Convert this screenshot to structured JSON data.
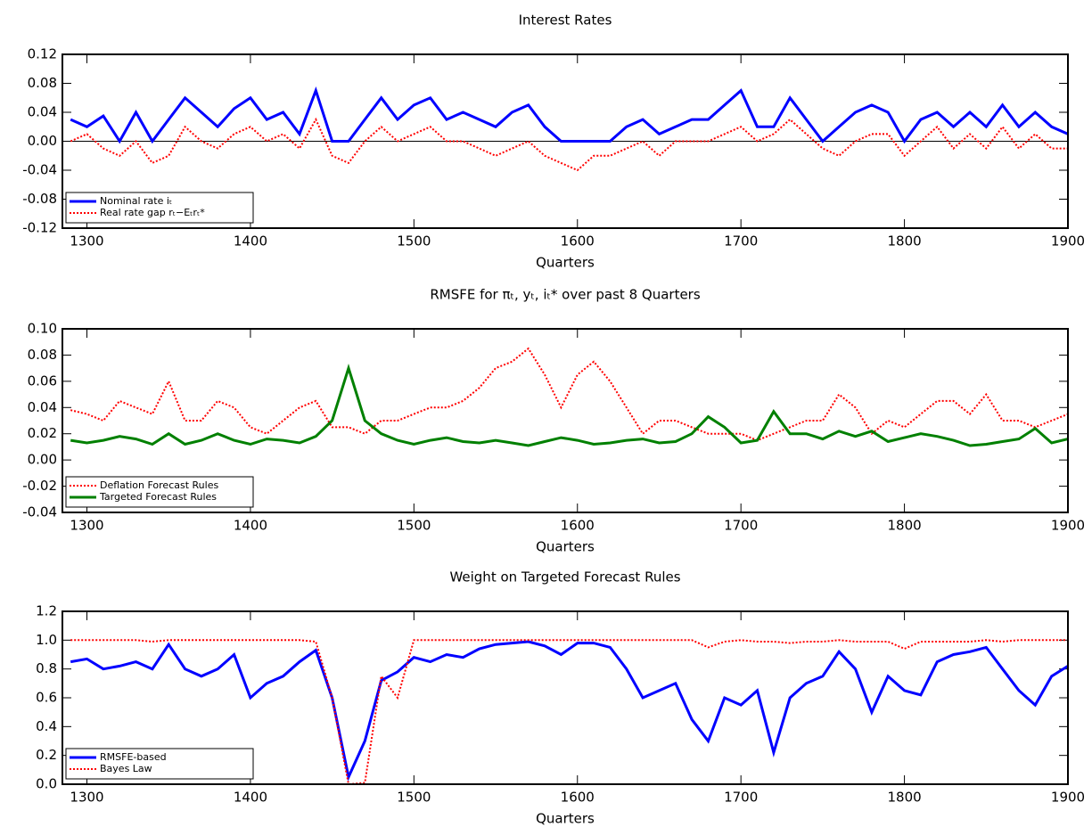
{
  "chart_data": [
    {
      "type": "line",
      "title": "Interest Rates",
      "xlabel": "Quarters",
      "x": [
        1290,
        1300,
        1310,
        1320,
        1330,
        1340,
        1350,
        1360,
        1370,
        1380,
        1390,
        1400,
        1410,
        1420,
        1430,
        1440,
        1450,
        1460,
        1470,
        1480,
        1490,
        1500,
        1510,
        1520,
        1530,
        1540,
        1550,
        1560,
        1570,
        1580,
        1590,
        1600,
        1610,
        1620,
        1630,
        1640,
        1650,
        1660,
        1670,
        1680,
        1690,
        1700,
        1710,
        1720,
        1730,
        1740,
        1750,
        1760,
        1770,
        1780,
        1790,
        1800,
        1810,
        1820,
        1830,
        1840,
        1850,
        1860,
        1870,
        1880,
        1890,
        1900
      ],
      "series": [
        {
          "name": "Nominal rate iₜ",
          "color": "#0000ff",
          "linestyle": "solid",
          "values": [
            0.03,
            0.02,
            0.035,
            0.0,
            0.04,
            0.0,
            0.03,
            0.06,
            0.04,
            0.02,
            0.045,
            0.06,
            0.03,
            0.04,
            0.01,
            0.07,
            0.0,
            0.0,
            0.03,
            0.06,
            0.03,
            0.05,
            0.06,
            0.03,
            0.04,
            0.03,
            0.02,
            0.04,
            0.05,
            0.02,
            0.0,
            0.0,
            0.0,
            0.0,
            0.02,
            0.03,
            0.01,
            0.02,
            0.03,
            0.03,
            0.05,
            0.07,
            0.02,
            0.02,
            0.06,
            0.03,
            0.0,
            0.02,
            0.04,
            0.05,
            0.04,
            0.0,
            0.03,
            0.04,
            0.02,
            0.04,
            0.02,
            0.05,
            0.02,
            0.04,
            0.02,
            0.01
          ]
        },
        {
          "name": "Real rate gap rₜ−Eₜrₜ*",
          "color": "#ff0000",
          "linestyle": "dotted",
          "values": [
            0.0,
            0.01,
            -0.01,
            -0.02,
            0.0,
            -0.03,
            -0.02,
            0.02,
            0.0,
            -0.01,
            0.01,
            0.02,
            0.0,
            0.01,
            -0.01,
            0.03,
            -0.02,
            -0.03,
            0.0,
            0.02,
            0.0,
            0.01,
            0.02,
            0.0,
            0.0,
            -0.01,
            -0.02,
            -0.01,
            0.0,
            -0.02,
            -0.03,
            -0.04,
            -0.02,
            -0.02,
            -0.01,
            0.0,
            -0.02,
            0.0,
            0.0,
            0.0,
            0.01,
            0.02,
            0.0,
            0.01,
            0.03,
            0.01,
            -0.01,
            -0.02,
            0.0,
            0.01,
            0.01,
            -0.02,
            0.0,
            0.02,
            -0.01,
            0.01,
            -0.01,
            0.02,
            -0.01,
            0.01,
            -0.01,
            -0.01
          ]
        }
      ],
      "xlim": [
        1285,
        1900
      ],
      "xticks": [
        1300,
        1400,
        1500,
        1600,
        1700,
        1800,
        1900
      ],
      "ylim": [
        -0.12,
        0.12
      ],
      "yticks": [
        -0.12,
        -0.08,
        -0.04,
        {
          "value": 0,
          "label": "0.00"
        },
        0.04,
        0.08,
        0.12
      ],
      "zero_line": true,
      "legend": "lower left"
    },
    {
      "type": "line",
      "title": "RMSFE for πₜ, yₜ, iₜ* over past 8 Quarters",
      "xlabel": "Quarters",
      "x": [
        1290,
        1300,
        1310,
        1320,
        1330,
        1340,
        1350,
        1360,
        1370,
        1380,
        1390,
        1400,
        1410,
        1420,
        1430,
        1440,
        1450,
        1460,
        1470,
        1480,
        1490,
        1500,
        1510,
        1520,
        1530,
        1540,
        1550,
        1560,
        1570,
        1580,
        1590,
        1600,
        1610,
        1620,
        1630,
        1640,
        1650,
        1660,
        1670,
        1680,
        1690,
        1700,
        1710,
        1720,
        1730,
        1740,
        1750,
        1760,
        1770,
        1780,
        1790,
        1800,
        1810,
        1820,
        1830,
        1840,
        1850,
        1860,
        1870,
        1880,
        1890,
        1900
      ],
      "series": [
        {
          "name": "Deflation Forecast Rules",
          "color": "#ff0000",
          "linestyle": "dotted",
          "values": [
            0.038,
            0.035,
            0.03,
            0.045,
            0.04,
            0.035,
            0.06,
            0.03,
            0.03,
            0.045,
            0.04,
            0.025,
            0.02,
            0.03,
            0.04,
            0.045,
            0.025,
            0.025,
            0.02,
            0.03,
            0.03,
            0.035,
            0.04,
            0.04,
            0.045,
            0.055,
            0.07,
            0.075,
            0.085,
            0.065,
            0.04,
            0.065,
            0.075,
            0.06,
            0.04,
            0.02,
            0.03,
            0.03,
            0.025,
            0.02,
            0.02,
            0.02,
            0.015,
            0.02,
            0.025,
            0.03,
            0.03,
            0.05,
            0.04,
            0.02,
            0.03,
            0.025,
            0.035,
            0.045,
            0.045,
            0.035,
            0.05,
            0.03,
            0.03,
            0.025,
            0.03,
            0.035
          ]
        },
        {
          "name": "Targeted Forecast Rules",
          "color": "#008000",
          "linestyle": "solid",
          "values": [
            0.015,
            0.013,
            0.015,
            0.018,
            0.016,
            0.012,
            0.02,
            0.012,
            0.015,
            0.02,
            0.015,
            0.012,
            0.016,
            0.015,
            0.013,
            0.018,
            0.03,
            0.07,
            0.03,
            0.02,
            0.015,
            0.012,
            0.015,
            0.017,
            0.014,
            0.013,
            0.015,
            0.013,
            0.011,
            0.014,
            0.017,
            0.015,
            0.012,
            0.013,
            0.015,
            0.016,
            0.013,
            0.014,
            0.02,
            0.033,
            0.025,
            0.013,
            0.015,
            0.037,
            0.02,
            0.02,
            0.016,
            0.022,
            0.018,
            0.022,
            0.014,
            0.017,
            0.02,
            0.018,
            0.015,
            0.011,
            0.012,
            0.014,
            0.016,
            0.024,
            0.013,
            0.016
          ]
        }
      ],
      "xlim": [
        1285,
        1900
      ],
      "xticks": [
        1300,
        1400,
        1500,
        1600,
        1700,
        1800,
        1900
      ],
      "ylim": [
        -0.04,
        0.1
      ],
      "yticks": [
        -0.04,
        -0.02,
        {
          "value": 0,
          "label": "0.00"
        },
        0.02,
        0.04,
        0.06,
        0.08,
        {
          "value": 0.1,
          "label": "0.10"
        }
      ],
      "zero_line": false,
      "legend": "lower left"
    },
    {
      "type": "line",
      "title": "Weight on Targeted Forecast Rules",
      "xlabel": "Quarters",
      "x": [
        1290,
        1300,
        1310,
        1320,
        1330,
        1340,
        1350,
        1360,
        1370,
        1380,
        1390,
        1400,
        1410,
        1420,
        1430,
        1440,
        1450,
        1460,
        1470,
        1480,
        1490,
        1500,
        1510,
        1520,
        1530,
        1540,
        1550,
        1560,
        1570,
        1580,
        1590,
        1600,
        1610,
        1620,
        1630,
        1640,
        1650,
        1660,
        1670,
        1680,
        1690,
        1700,
        1710,
        1720,
        1730,
        1740,
        1750,
        1760,
        1770,
        1780,
        1790,
        1800,
        1810,
        1820,
        1830,
        1840,
        1850,
        1860,
        1870,
        1880,
        1890,
        1900
      ],
      "series": [
        {
          "name": "RMSFE-based",
          "color": "#0000ff",
          "linestyle": "solid",
          "values": [
            0.85,
            0.87,
            0.8,
            0.82,
            0.85,
            0.8,
            0.97,
            0.8,
            0.75,
            0.8,
            0.9,
            0.6,
            0.7,
            0.75,
            0.85,
            0.93,
            0.6,
            0.05,
            0.3,
            0.72,
            0.78,
            0.88,
            0.85,
            0.9,
            0.88,
            0.94,
            0.97,
            0.98,
            0.99,
            0.96,
            0.9,
            0.98,
            0.98,
            0.95,
            0.8,
            0.6,
            0.65,
            0.7,
            0.45,
            0.3,
            0.6,
            0.55,
            0.65,
            0.22,
            0.6,
            0.7,
            0.75,
            0.92,
            0.8,
            0.5,
            0.75,
            0.65,
            0.62,
            0.85,
            0.9,
            0.92,
            0.95,
            0.8,
            0.65,
            0.55,
            0.75,
            0.82
          ]
        },
        {
          "name": "Bayes Law",
          "color": "#ff0000",
          "linestyle": "dotted",
          "values": [
            1.0,
            1.0,
            1.0,
            1.0,
            1.0,
            0.99,
            1.0,
            1.0,
            1.0,
            1.0,
            1.0,
            1.0,
            1.0,
            1.0,
            1.0,
            0.99,
            0.6,
            0.0,
            0.01,
            0.75,
            0.6,
            1.0,
            1.0,
            1.0,
            1.0,
            1.0,
            1.0,
            1.0,
            1.0,
            1.0,
            1.0,
            1.0,
            1.0,
            1.0,
            1.0,
            1.0,
            1.0,
            1.0,
            1.0,
            0.95,
            0.99,
            1.0,
            0.99,
            0.99,
            0.98,
            0.99,
            0.99,
            1.0,
            0.99,
            0.99,
            0.99,
            0.94,
            0.99,
            0.99,
            0.99,
            0.99,
            1.0,
            0.99,
            1.0,
            1.0,
            1.0,
            1.0
          ]
        }
      ],
      "xlim": [
        1285,
        1900
      ],
      "xticks": [
        1300,
        1400,
        1500,
        1600,
        1700,
        1800,
        1900
      ],
      "ylim": [
        0,
        1.2
      ],
      "yticks": [
        {
          "value": 0,
          "label": "0.0"
        },
        0.2,
        0.4,
        0.6,
        0.8,
        {
          "value": 1,
          "label": "1.0"
        },
        1.2
      ],
      "zero_line": false,
      "legend": "lower left"
    }
  ]
}
